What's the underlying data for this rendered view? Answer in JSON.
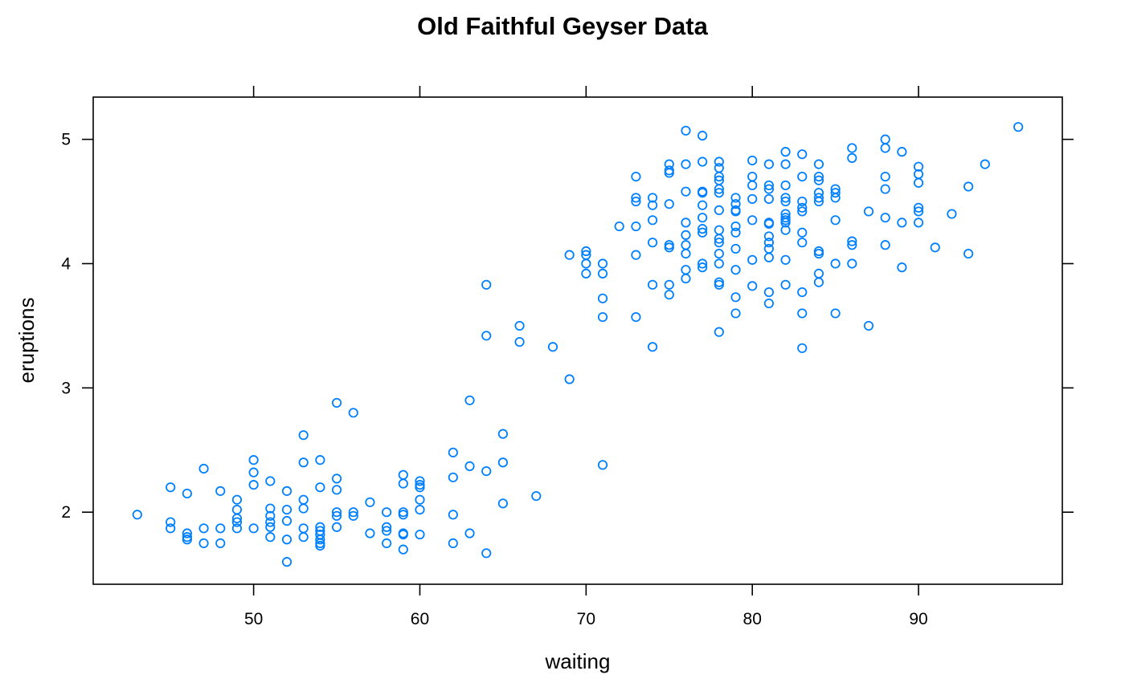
{
  "chart_data": {
    "type": "scatter",
    "title": "Old Faithful Geyser Data",
    "xlabel": "waiting",
    "ylabel": "eruptions",
    "xlim": [
      40.35,
      98.65
    ],
    "ylim": [
      1.42,
      5.34
    ],
    "xticks": [
      50,
      60,
      70,
      80,
      90
    ],
    "yticks": [
      2,
      3,
      4,
      5
    ],
    "grid": false,
    "point_color": "#0080ff",
    "marker": "open-circle",
    "series": [
      {
        "points": [
          [
            43,
            1.98
          ],
          [
            45,
            2.2
          ],
          [
            45,
            1.92
          ],
          [
            45,
            1.87
          ],
          [
            46,
            2.15
          ],
          [
            46,
            1.83
          ],
          [
            46,
            1.8
          ],
          [
            46,
            1.78
          ],
          [
            47,
            2.35
          ],
          [
            47,
            1.87
          ],
          [
            47,
            1.75
          ],
          [
            48,
            2.17
          ],
          [
            48,
            1.87
          ],
          [
            48,
            1.75
          ],
          [
            49,
            2.1
          ],
          [
            49,
            2.02
          ],
          [
            49,
            1.95
          ],
          [
            49,
            1.92
          ],
          [
            49,
            1.87
          ],
          [
            50,
            2.42
          ],
          [
            50,
            2.32
          ],
          [
            50,
            2.22
          ],
          [
            50,
            1.87
          ],
          [
            51,
            2.25
          ],
          [
            51,
            2.03
          ],
          [
            51,
            1.97
          ],
          [
            51,
            1.92
          ],
          [
            51,
            1.88
          ],
          [
            51,
            1.8
          ],
          [
            52,
            2.17
          ],
          [
            52,
            2.02
          ],
          [
            52,
            1.93
          ],
          [
            52,
            1.78
          ],
          [
            52,
            1.6
          ],
          [
            53,
            2.62
          ],
          [
            53,
            2.4
          ],
          [
            53,
            2.1
          ],
          [
            53,
            2.03
          ],
          [
            53,
            1.87
          ],
          [
            53,
            1.8
          ],
          [
            54,
            2.42
          ],
          [
            54,
            2.2
          ],
          [
            54,
            1.88
          ],
          [
            54,
            1.85
          ],
          [
            54,
            1.82
          ],
          [
            54,
            1.78
          ],
          [
            54,
            1.75
          ],
          [
            54,
            1.73
          ],
          [
            55,
            2.88
          ],
          [
            55,
            2.27
          ],
          [
            55,
            2.18
          ],
          [
            55,
            2.0
          ],
          [
            55,
            1.97
          ],
          [
            55,
            1.88
          ],
          [
            56,
            2.8
          ],
          [
            56,
            2.0
          ],
          [
            56,
            1.97
          ],
          [
            57,
            2.08
          ],
          [
            57,
            1.83
          ],
          [
            58,
            2.0
          ],
          [
            58,
            1.88
          ],
          [
            58,
            1.85
          ],
          [
            58,
            1.75
          ],
          [
            59,
            2.3
          ],
          [
            59,
            2.23
          ],
          [
            59,
            2.0
          ],
          [
            59,
            1.98
          ],
          [
            59,
            1.83
          ],
          [
            59,
            1.82
          ],
          [
            59,
            1.7
          ],
          [
            60,
            2.25
          ],
          [
            60,
            2.22
          ],
          [
            60,
            2.2
          ],
          [
            60,
            2.1
          ],
          [
            60,
            2.02
          ],
          [
            60,
            1.82
          ],
          [
            62,
            2.48
          ],
          [
            62,
            2.28
          ],
          [
            62,
            1.98
          ],
          [
            62,
            1.75
          ],
          [
            63,
            2.9
          ],
          [
            63,
            2.37
          ],
          [
            63,
            1.83
          ],
          [
            64,
            3.83
          ],
          [
            64,
            3.42
          ],
          [
            64,
            2.33
          ],
          [
            64,
            1.67
          ],
          [
            65,
            2.63
          ],
          [
            65,
            2.4
          ],
          [
            65,
            2.07
          ],
          [
            66,
            3.5
          ],
          [
            66,
            3.37
          ],
          [
            67,
            2.13
          ],
          [
            68,
            3.33
          ],
          [
            69,
            4.07
          ],
          [
            69,
            3.07
          ],
          [
            70,
            4.1
          ],
          [
            70,
            4.07
          ],
          [
            70,
            4.0
          ],
          [
            70,
            3.92
          ],
          [
            71,
            4.0
          ],
          [
            71,
            3.92
          ],
          [
            71,
            3.72
          ],
          [
            71,
            3.57
          ],
          [
            71,
            2.38
          ],
          [
            72,
            4.3
          ],
          [
            73,
            4.7
          ],
          [
            73,
            4.53
          ],
          [
            73,
            4.5
          ],
          [
            73,
            4.3
          ],
          [
            73,
            4.07
          ],
          [
            73,
            3.57
          ],
          [
            74,
            4.53
          ],
          [
            74,
            4.47
          ],
          [
            74,
            4.35
          ],
          [
            74,
            4.17
          ],
          [
            74,
            3.83
          ],
          [
            74,
            3.33
          ],
          [
            75,
            4.8
          ],
          [
            75,
            4.75
          ],
          [
            75,
            4.73
          ],
          [
            75,
            4.48
          ],
          [
            75,
            4.15
          ],
          [
            75,
            4.13
          ],
          [
            75,
            3.83
          ],
          [
            75,
            3.75
          ],
          [
            76,
            5.07
          ],
          [
            76,
            4.8
          ],
          [
            76,
            4.58
          ],
          [
            76,
            4.33
          ],
          [
            76,
            4.23
          ],
          [
            76,
            4.15
          ],
          [
            76,
            4.08
          ],
          [
            76,
            3.95
          ],
          [
            76,
            3.88
          ],
          [
            77,
            5.03
          ],
          [
            77,
            4.82
          ],
          [
            77,
            4.58
          ],
          [
            77,
            4.57
          ],
          [
            77,
            4.47
          ],
          [
            77,
            4.37
          ],
          [
            77,
            4.28
          ],
          [
            77,
            4.25
          ],
          [
            77,
            4.0
          ],
          [
            77,
            3.97
          ],
          [
            78,
            4.82
          ],
          [
            78,
            4.77
          ],
          [
            78,
            4.7
          ],
          [
            78,
            4.67
          ],
          [
            78,
            4.6
          ],
          [
            78,
            4.57
          ],
          [
            78,
            4.43
          ],
          [
            78,
            4.27
          ],
          [
            78,
            4.2
          ],
          [
            78,
            4.17
          ],
          [
            78,
            4.08
          ],
          [
            78,
            4.0
          ],
          [
            78,
            3.85
          ],
          [
            78,
            3.83
          ],
          [
            78,
            3.45
          ],
          [
            79,
            4.53
          ],
          [
            79,
            4.48
          ],
          [
            79,
            4.43
          ],
          [
            79,
            4.42
          ],
          [
            79,
            4.3
          ],
          [
            79,
            4.25
          ],
          [
            79,
            4.12
          ],
          [
            79,
            3.95
          ],
          [
            79,
            3.73
          ],
          [
            79,
            3.6
          ],
          [
            80,
            4.83
          ],
          [
            80,
            4.7
          ],
          [
            80,
            4.63
          ],
          [
            80,
            4.52
          ],
          [
            80,
            4.35
          ],
          [
            80,
            4.03
          ],
          [
            80,
            3.82
          ],
          [
            81,
            4.8
          ],
          [
            81,
            4.63
          ],
          [
            81,
            4.6
          ],
          [
            81,
            4.52
          ],
          [
            81,
            4.33
          ],
          [
            81,
            4.32
          ],
          [
            81,
            4.22
          ],
          [
            81,
            4.17
          ],
          [
            81,
            4.12
          ],
          [
            81,
            4.05
          ],
          [
            81,
            3.77
          ],
          [
            81,
            3.68
          ],
          [
            82,
            4.9
          ],
          [
            82,
            4.8
          ],
          [
            82,
            4.63
          ],
          [
            82,
            4.53
          ],
          [
            82,
            4.5
          ],
          [
            82,
            4.4
          ],
          [
            82,
            4.37
          ],
          [
            82,
            4.35
          ],
          [
            82,
            4.33
          ],
          [
            82,
            4.27
          ],
          [
            82,
            4.03
          ],
          [
            82,
            3.83
          ],
          [
            83,
            4.88
          ],
          [
            83,
            4.7
          ],
          [
            83,
            4.5
          ],
          [
            83,
            4.45
          ],
          [
            83,
            4.42
          ],
          [
            83,
            4.25
          ],
          [
            83,
            4.17
          ],
          [
            83,
            3.77
          ],
          [
            83,
            3.6
          ],
          [
            83,
            3.32
          ],
          [
            84,
            4.8
          ],
          [
            84,
            4.7
          ],
          [
            84,
            4.67
          ],
          [
            84,
            4.57
          ],
          [
            84,
            4.53
          ],
          [
            84,
            4.5
          ],
          [
            84,
            4.1
          ],
          [
            84,
            4.08
          ],
          [
            84,
            3.92
          ],
          [
            84,
            3.85
          ],
          [
            85,
            4.6
          ],
          [
            85,
            4.57
          ],
          [
            85,
            4.53
          ],
          [
            85,
            4.35
          ],
          [
            85,
            4.0
          ],
          [
            85,
            3.6
          ],
          [
            86,
            4.93
          ],
          [
            86,
            4.85
          ],
          [
            86,
            4.18
          ],
          [
            86,
            4.15
          ],
          [
            86,
            4.0
          ],
          [
            87,
            4.42
          ],
          [
            87,
            3.5
          ],
          [
            88,
            5.0
          ],
          [
            88,
            4.93
          ],
          [
            88,
            4.7
          ],
          [
            88,
            4.6
          ],
          [
            88,
            4.37
          ],
          [
            88,
            4.15
          ],
          [
            89,
            4.9
          ],
          [
            89,
            4.33
          ],
          [
            89,
            3.97
          ],
          [
            90,
            4.78
          ],
          [
            90,
            4.72
          ],
          [
            90,
            4.65
          ],
          [
            90,
            4.45
          ],
          [
            90,
            4.42
          ],
          [
            90,
            4.33
          ],
          [
            91,
            4.13
          ],
          [
            92,
            4.4
          ],
          [
            93,
            4.62
          ],
          [
            93,
            4.08
          ],
          [
            94,
            4.8
          ],
          [
            96,
            5.1
          ]
        ]
      }
    ]
  }
}
